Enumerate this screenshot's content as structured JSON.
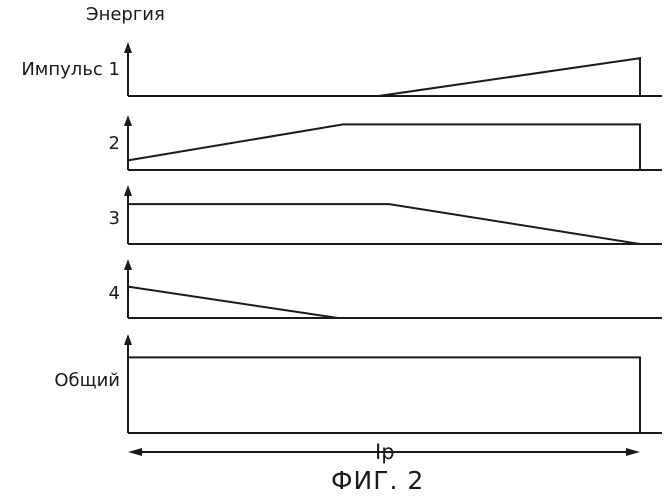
{
  "figure": {
    "y_axis_label": "Энергия",
    "duration_label": "Ip",
    "caption": "ФИГ. 2"
  },
  "pulses": [
    {
      "label": "Импульс 1",
      "profile": [
        [
          0,
          0
        ],
        [
          0.49,
          0
        ],
        [
          1.0,
          0.7
        ],
        [
          1.0,
          0
        ]
      ]
    },
    {
      "label": "2",
      "profile": [
        [
          0,
          0.2
        ],
        [
          0.42,
          0.95
        ],
        [
          1.0,
          0.95
        ],
        [
          1.0,
          0
        ]
      ]
    },
    {
      "label": "3",
      "profile": [
        [
          0,
          0.95
        ],
        [
          0.51,
          0.95
        ],
        [
          1.0,
          0
        ],
        [
          1.0,
          0
        ]
      ]
    },
    {
      "label": "4",
      "profile": [
        [
          0,
          0.95
        ],
        [
          0.41,
          0
        ],
        [
          1.0,
          0
        ],
        [
          1.0,
          0
        ]
      ]
    },
    {
      "label": "Общий",
      "profile": [
        [
          0,
          0.97
        ],
        [
          1.0,
          0.97
        ],
        [
          1.0,
          0
        ]
      ]
    }
  ],
  "colors": {
    "ink": "#1a1a1a",
    "background": "#ffffff"
  }
}
